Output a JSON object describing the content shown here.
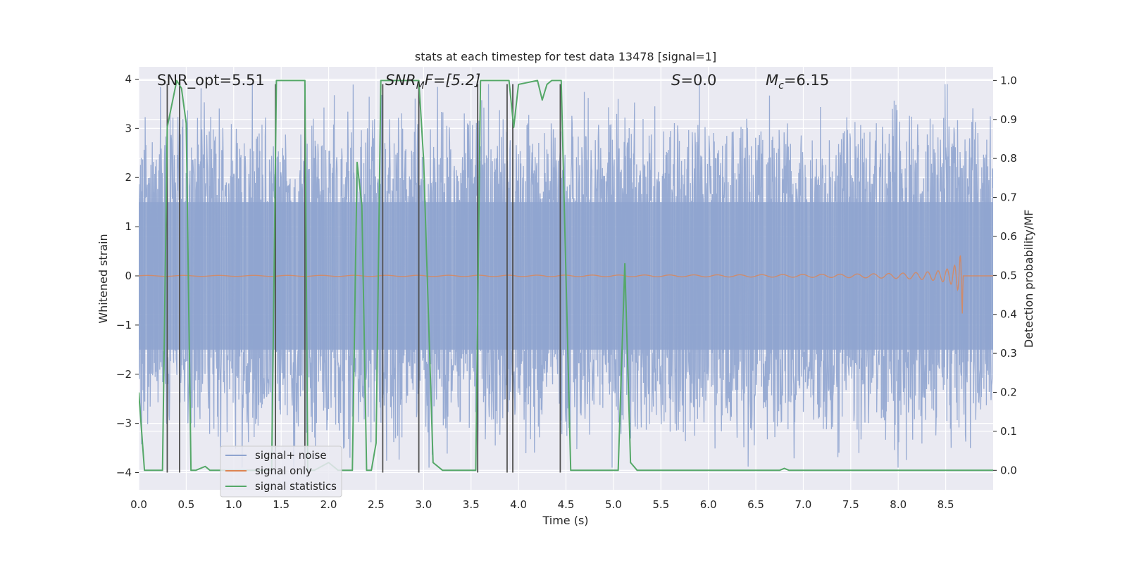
{
  "chart_data": {
    "type": "line",
    "title": "stats at each timestep for test data 13478 [signal=1]",
    "xlabel": "Time (s)",
    "ylabel_left": "Whitened strain",
    "ylabel_right": "Detection probability/MF",
    "xlim": [
      0.0,
      9.0
    ],
    "ylim_left": [
      -4.35,
      4.25
    ],
    "ylim_right": [
      -0.05,
      1.035
    ],
    "xticks": [
      0.0,
      0.5,
      1.0,
      1.5,
      2.0,
      2.5,
      3.0,
      3.5,
      4.0,
      4.5,
      5.0,
      5.5,
      6.0,
      6.5,
      7.0,
      7.5,
      8.0,
      8.5
    ],
    "xtick_labels": [
      "0.0",
      "0.5",
      "1.0",
      "1.5",
      "2.0",
      "2.5",
      "3.0",
      "3.5",
      "4.0",
      "4.5",
      "5.0",
      "5.5",
      "6.0",
      "6.5",
      "7.0",
      "7.5",
      "8.0",
      "8.5"
    ],
    "yticks_left": [
      -4,
      -3,
      -2,
      -1,
      0,
      1,
      2,
      3,
      4
    ],
    "ytick_labels_left": [
      "−4",
      "−3",
      "−2",
      "−1",
      "0",
      "1",
      "2",
      "3",
      "4"
    ],
    "yticks_right": [
      0.0,
      0.1,
      0.2,
      0.3,
      0.4,
      0.5,
      0.6,
      0.7,
      0.8,
      0.9,
      1.0
    ],
    "ytick_labels_right": [
      "0.0",
      "0.1",
      "0.2",
      "0.3",
      "0.4",
      "0.5",
      "0.6",
      "0.7",
      "0.8",
      "0.9",
      "1.0"
    ],
    "annotations": [
      {
        "label": "SNR_opt=5.51",
        "x": 0.2
      },
      {
        "label": "SNR_MF=[5.2]",
        "x": 2.6
      },
      {
        "label": "S=0.0",
        "x": 5.6
      },
      {
        "label": "M_c=6.15",
        "x": 6.6
      }
    ],
    "annotation_text": {
      "snr_opt": "SNR_opt=5.51",
      "snr_mf_base": "SNR",
      "snr_mf_sub": "M",
      "snr_mf_rest": "F=[5.2]",
      "s_var": "S",
      "s_rest": "=0.0",
      "mc_var": "M",
      "mc_sub": "c",
      "mc_rest": "=6.15"
    },
    "legend": {
      "location": "lower-left",
      "entries": [
        "signal+ noise",
        "signal only",
        "signal statistics"
      ]
    },
    "colors": {
      "noise": "#8fa4cf",
      "signal": "#dd8452",
      "statistics": "#55a868",
      "background": "#eaeaf2",
      "vlines": "#505050"
    },
    "series": [
      {
        "name": "signal statistics",
        "axis": "right",
        "x": [
          0.0,
          0.06,
          0.25,
          0.3,
          0.4,
          0.45,
          0.5,
          0.55,
          0.6,
          0.7,
          0.75,
          0.8,
          1.0,
          1.4,
          1.45,
          1.5,
          1.75,
          1.78,
          1.85,
          2.0,
          2.1,
          2.25,
          2.3,
          2.35,
          2.4,
          2.45,
          2.5,
          2.55,
          2.6,
          2.65,
          2.95,
          3.0,
          3.1,
          3.2,
          3.35,
          3.55,
          3.6,
          3.65,
          3.9,
          3.95,
          4.0,
          4.2,
          4.25,
          4.3,
          4.35,
          4.45,
          4.55,
          4.9,
          5.05,
          5.12,
          5.18,
          5.25,
          6.75,
          6.8,
          6.85,
          8.9,
          9.0
        ],
        "y": [
          0.2,
          0.0,
          0.0,
          0.88,
          1.0,
          0.98,
          0.89,
          0.0,
          0.0,
          0.01,
          0.0,
          0.0,
          0.0,
          0.0,
          1.0,
          1.0,
          1.0,
          0.0,
          0.0,
          0.02,
          0.0,
          0.0,
          0.79,
          0.68,
          0.0,
          0.0,
          0.07,
          1.0,
          1.0,
          1.0,
          1.0,
          0.8,
          0.02,
          0.0,
          0.0,
          0.0,
          1.0,
          1.0,
          1.0,
          0.88,
          0.99,
          1.0,
          0.95,
          0.99,
          1.0,
          1.0,
          0.0,
          0.0,
          0.0,
          0.53,
          0.02,
          0.0,
          0.0,
          0.005,
          0.0,
          0.0,
          0.0
        ]
      },
      {
        "name": "signal only",
        "axis": "left",
        "description": "chirp oscillation growing to peak amplitude near merger",
        "x_start": 0.0,
        "x_merger": 8.68,
        "peak_amplitude": 0.8
      },
      {
        "name": "signal+ noise",
        "axis": "left",
        "description": "whitened strain noise, approx. uniform variance, spanning roughly -4 to 4",
        "typical_envelope": 1.5
      }
    ],
    "vertical_markers": {
      "axis_range": [
        -4.0,
        3.9
      ],
      "x": [
        0.3,
        0.43,
        1.44,
        1.75,
        2.57,
        2.95,
        3.57,
        3.88,
        3.94,
        4.44
      ]
    }
  }
}
